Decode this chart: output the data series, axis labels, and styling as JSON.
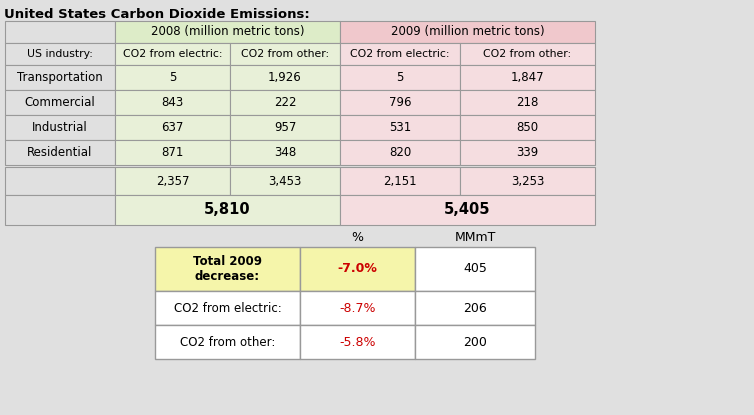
{
  "title": "United States Carbon Dioxide Emissions:",
  "bg_color": "#e0e0e0",
  "table1": {
    "subheader_row": [
      "US industry:",
      "CO2 from electric:",
      "CO2 from other:",
      "CO2 from electric:",
      "CO2 from other:"
    ],
    "rows": [
      [
        "Transportation",
        "5",
        "1,926",
        "5",
        "1,847"
      ],
      [
        "Commercial",
        "843",
        "222",
        "796",
        "218"
      ],
      [
        "Industrial",
        "637",
        "957",
        "531",
        "850"
      ],
      [
        "Residential",
        "871",
        "348",
        "820",
        "339"
      ]
    ],
    "subtotal_row": [
      "",
      "2,357",
      "3,453",
      "2,151",
      "3,253"
    ],
    "total_2008": "5,810",
    "total_2009": "5,405",
    "col2008_bg": "#e8f0d8",
    "col2009_bg": "#f5dde0",
    "header2008_bg": "#ddecc8",
    "header2009_bg": "#f0c8cc",
    "cell_bg": "#e0e0e0",
    "hdr_2008": "2008 (million metric tons)",
    "hdr_2009": "2009 (million metric tons)"
  },
  "table2": {
    "col_headers": [
      "",
      "%",
      "MMmT"
    ],
    "rows": [
      [
        "Total 2009\ndecrease:",
        "-7.0%",
        "405"
      ],
      [
        "CO2 from electric:",
        "-8.7%",
        "206"
      ],
      [
        "CO2 from other:",
        "-5.8%",
        "200"
      ]
    ],
    "row0_col01_bg": "#f5f5aa",
    "other_bg": "#ffffff",
    "pct_color": "#cc0000",
    "border_color": "#999999"
  }
}
